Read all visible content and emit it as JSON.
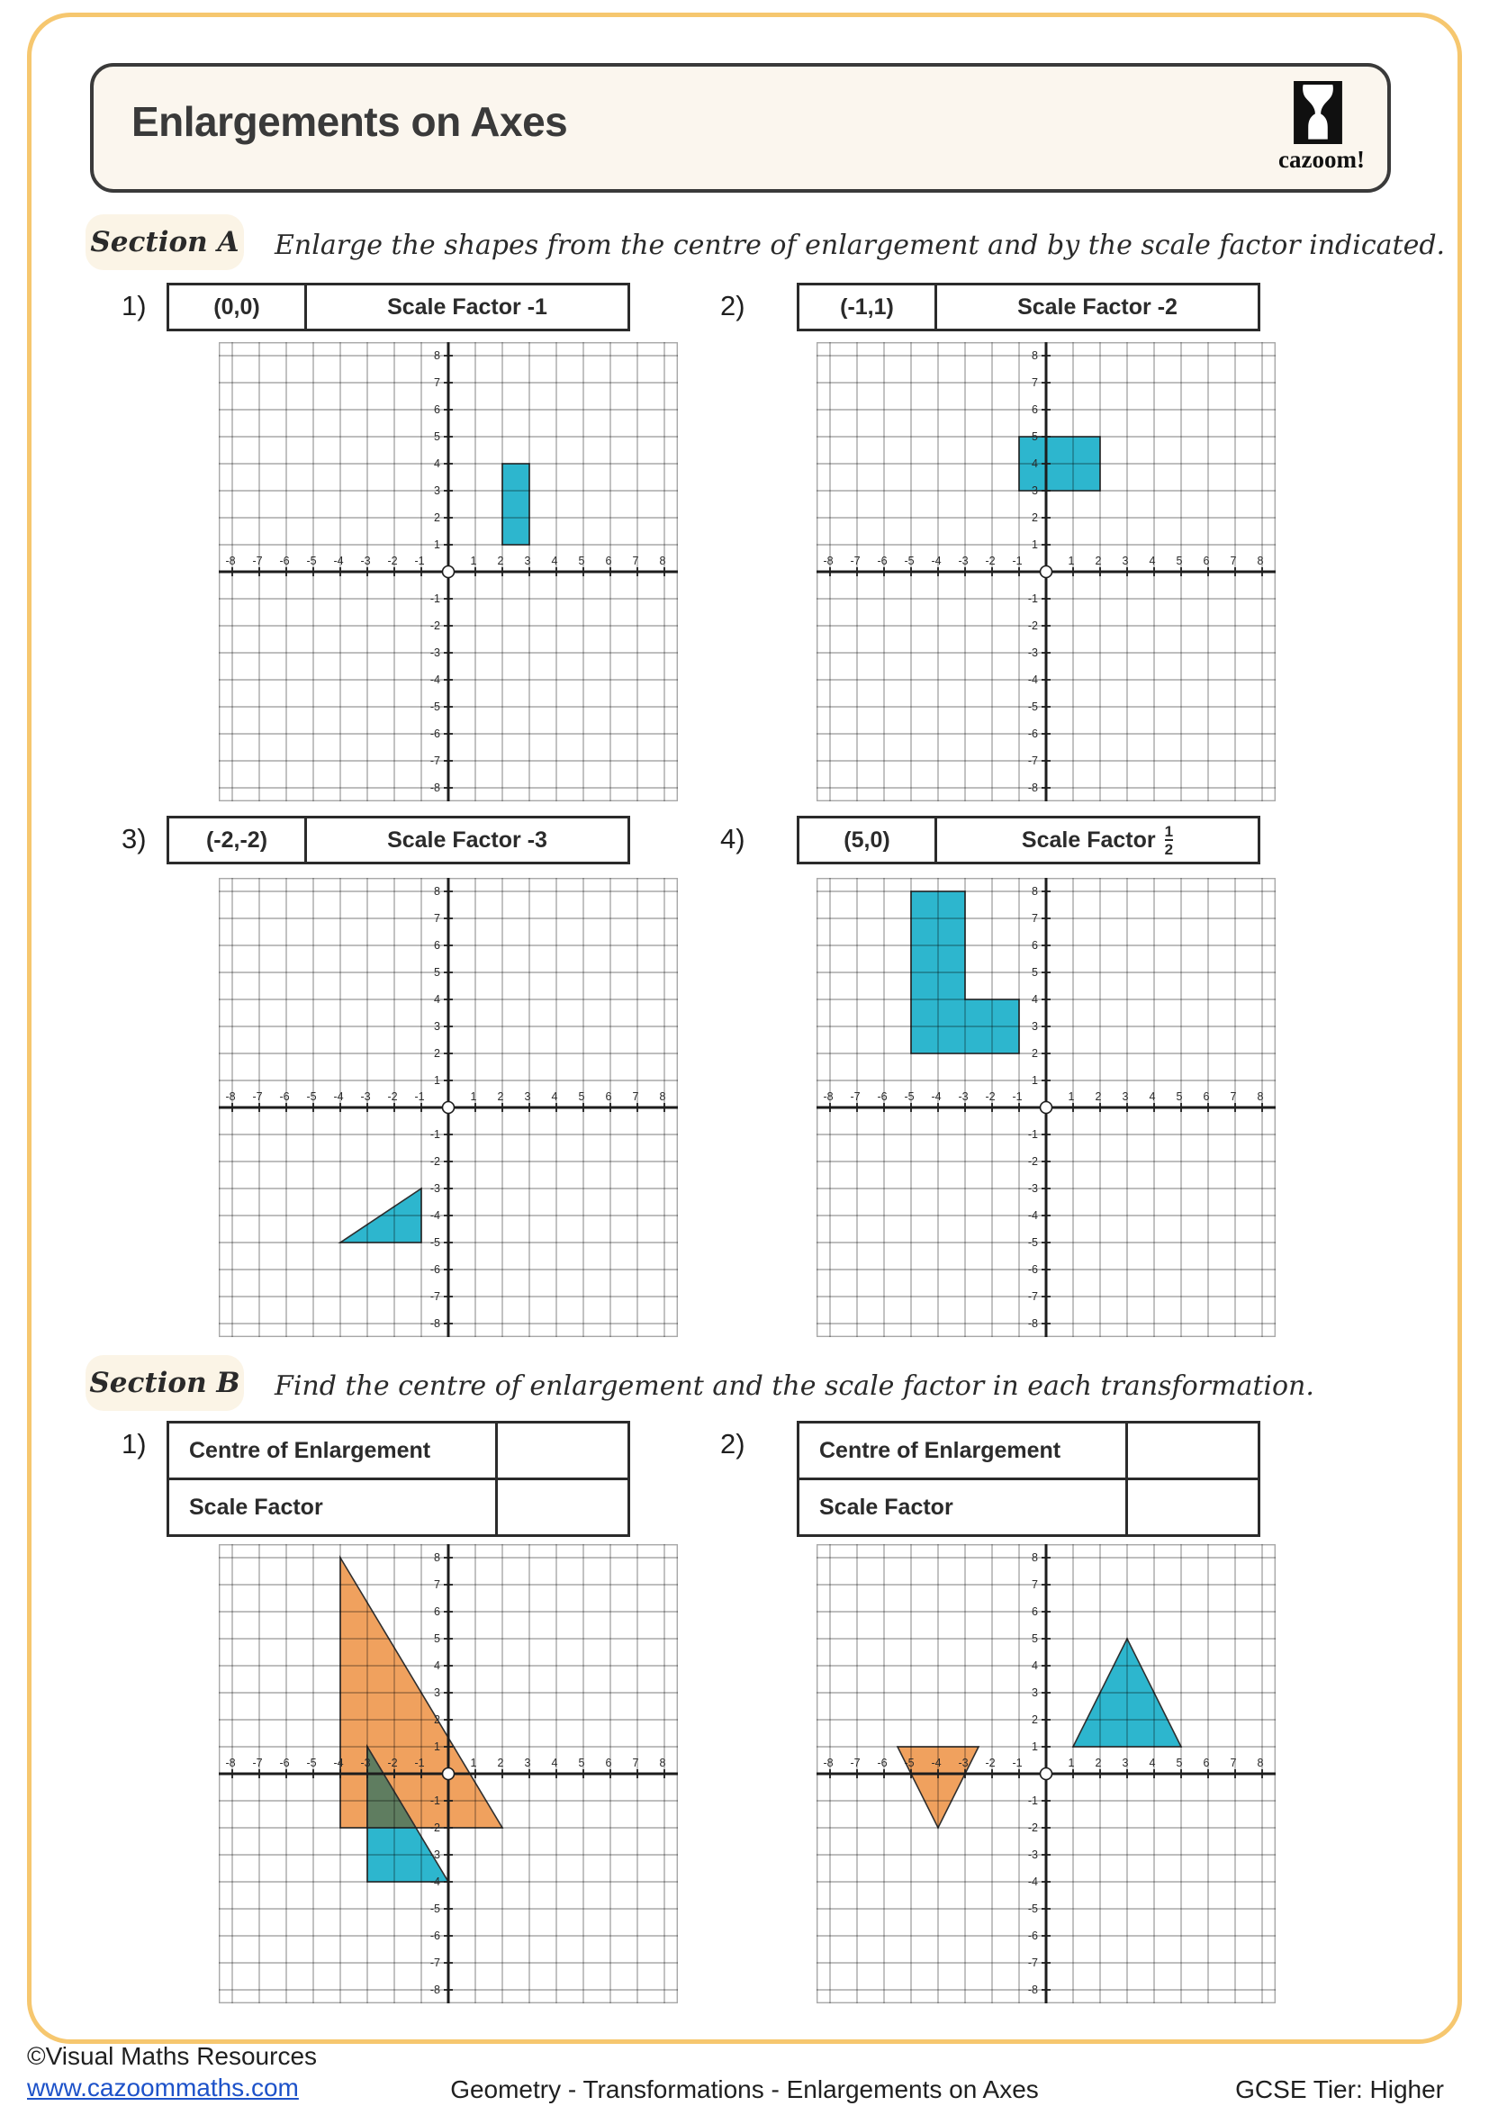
{
  "colors": {
    "teal": "#2db6ce",
    "orange": "#f0a15e",
    "overlap": "#5f7d60",
    "axis": "#1d1d1d",
    "shape_outline": "#2f2f2f",
    "label": "#2a2a2a",
    "page_border": "#f6c76f",
    "link": "#1d52c9"
  },
  "header": {
    "title": "Enlargements on Axes",
    "logo_caption": "cazoom!"
  },
  "section_a": {
    "label": "Section A",
    "instruction": "Enlarge the shapes from the centre of enlargement and by the scale factor indicated.",
    "problems": [
      {
        "num": "1)",
        "centre": "(0,0)",
        "scale": "Scale Factor -1"
      },
      {
        "num": "2)",
        "centre": "(-1,1)",
        "scale": "Scale Factor -2"
      },
      {
        "num": "3)",
        "centre": "(-2,-2)",
        "scale": "Scale Factor -3"
      },
      {
        "num": "4)",
        "centre": "(5,0)",
        "scale": "Scale Factor",
        "frac_num": "1",
        "frac_den": "2"
      }
    ]
  },
  "section_b": {
    "label": "Section B",
    "instruction": "Find the centre of enlargement and the scale factor in each transformation.",
    "problems": [
      {
        "num": "1)",
        "row1": "Centre of Enlargement",
        "row2": "Scale Factor",
        "answer1": "",
        "answer2": ""
      },
      {
        "num": "2)",
        "row1": "Centre of Enlargement",
        "row2": "Scale Factor",
        "answer1": "",
        "answer2": ""
      }
    ]
  },
  "grids": [
    {
      "id": "a1",
      "axis_range": [
        -8,
        8
      ],
      "tick_step": 1,
      "shapes": [
        {
          "color": "teal",
          "points": [
            [
              2,
              1
            ],
            [
              3,
              1
            ],
            [
              3,
              4
            ],
            [
              2,
              4
            ]
          ]
        }
      ]
    },
    {
      "id": "a2",
      "axis_range": [
        -8,
        8
      ],
      "tick_step": 1,
      "shapes": [
        {
          "color": "teal",
          "points": [
            [
              -1,
              3
            ],
            [
              2,
              3
            ],
            [
              2,
              5
            ],
            [
              -1,
              5
            ]
          ]
        }
      ]
    },
    {
      "id": "a3",
      "axis_range": [
        -8,
        8
      ],
      "tick_step": 1,
      "shapes": [
        {
          "color": "teal",
          "points": [
            [
              -4,
              -5
            ],
            [
              -1,
              -5
            ],
            [
              -1,
              -3
            ]
          ]
        }
      ]
    },
    {
      "id": "a4",
      "axis_range": [
        -8,
        8
      ],
      "tick_step": 1,
      "shapes": [
        {
          "color": "teal",
          "points": [
            [
              -5,
              2
            ],
            [
              -5,
              8
            ],
            [
              -3,
              8
            ],
            [
              -3,
              4
            ],
            [
              -1,
              4
            ],
            [
              -1,
              2
            ]
          ]
        }
      ]
    },
    {
      "id": "b1",
      "axis_range": [
        -8,
        8
      ],
      "tick_step": 1,
      "shapes": [
        {
          "color": "orange",
          "points": [
            [
              -4,
              8
            ],
            [
              -4,
              -2
            ],
            [
              2,
              -2
            ]
          ]
        },
        {
          "color": "teal",
          "points": [
            [
              -3,
              1
            ],
            [
              -3,
              -4
            ],
            [
              0,
              -4
            ]
          ]
        },
        {
          "color": "overlap",
          "points": [
            [
              -3,
              1
            ],
            [
              -3,
              -2
            ],
            [
              -1.2,
              -2
            ]
          ]
        }
      ]
    },
    {
      "id": "b2",
      "axis_range": [
        -8,
        8
      ],
      "tick_step": 1,
      "shapes": [
        {
          "color": "orange",
          "points": [
            [
              -5.5,
              1
            ],
            [
              -2.5,
              1
            ],
            [
              -4,
              -2
            ]
          ]
        },
        {
          "color": "teal",
          "points": [
            [
              1,
              1
            ],
            [
              5,
              1
            ],
            [
              3,
              5
            ]
          ]
        }
      ]
    }
  ],
  "footer": {
    "copyright": "©Visual Maths Resources",
    "url": "www.cazoommaths.com",
    "center": "Geometry - Transformations - Enlargements on Axes",
    "right": "GCSE Tier: Higher"
  }
}
